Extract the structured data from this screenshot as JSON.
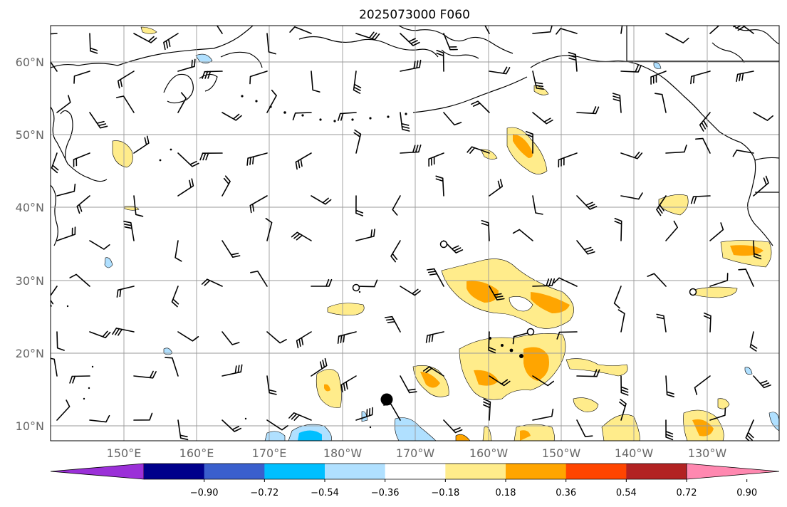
{
  "title": "2025073000 F060",
  "lat_labels": [
    "60°N",
    "50°N",
    "40°N",
    "30°N",
    "20°N",
    "10°N"
  ],
  "lon_labels": [
    "150°E",
    "160°E",
    "170°E",
    "180°W",
    "170°W",
    "160°W",
    "150°W",
    "140°W",
    "130°W"
  ],
  "colorbar": {
    "tick_labels": [
      "−0.90",
      "−0.72",
      "−0.54",
      "−0.36",
      "−0.18",
      "0.18",
      "0.36",
      "0.54",
      "0.72",
      "0.90"
    ],
    "colors": [
      "#9b30d8",
      "#00008b",
      "#3a5fcd",
      "#00bfff",
      "#b0e0ff",
      "#ffffff",
      "#ffec8b",
      "#ffa500",
      "#ff4500",
      "#b22222",
      "#ff88b0"
    ]
  },
  "map": {
    "land_color": "#ffffff",
    "coast_color": "#000000",
    "grid_color": "#9a9a9a",
    "markers": [
      "storm-center-dot",
      "open-circle-marker"
    ]
  }
}
